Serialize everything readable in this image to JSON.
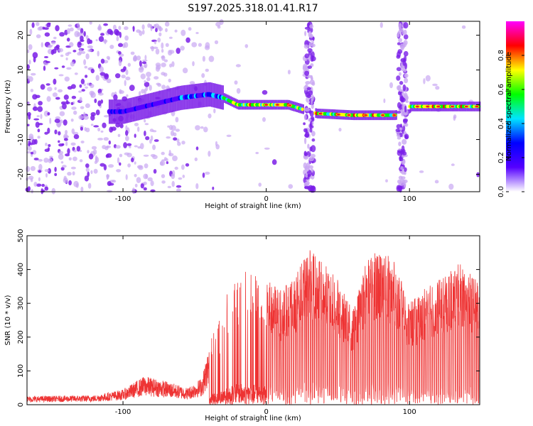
{
  "title": "S197.2025.318.01.41.R17",
  "colors": {
    "spectrogram_sparse": "#c9a8f2",
    "spectrogram_dense": "#7b1fe8",
    "snr_line": "#ee3333"
  },
  "chart_data": [
    {
      "type": "heatmap",
      "name": "spectrogram",
      "xlabel": "Height of straight line (km)",
      "ylabel": "Frequency (Hz)",
      "xlim": [
        -167,
        149
      ],
      "ylim": [
        -25,
        24
      ],
      "x_ticks": [
        -100,
        0,
        100
      ],
      "x_tick_labels": [
        "-100",
        "0",
        "100"
      ],
      "y_ticks": [
        -20,
        -10,
        0,
        10,
        20
      ],
      "y_tick_labels": [
        "-20",
        "-10",
        "0",
        "10",
        "20"
      ],
      "colorbar": {
        "label": "Normalized spectral amplitude",
        "range": [
          0,
          1
        ],
        "ticks": [
          0.0,
          0.2,
          0.4,
          0.6,
          0.8
        ],
        "tick_labels": [
          "0.0",
          "0.2",
          "0.4",
          "0.6",
          "0.8"
        ],
        "colormap": [
          "#ffffff",
          "#5500ff",
          "#0000ff",
          "#00e5ff",
          "#00ff00",
          "#ffff00",
          "#ff0000",
          "#ff00ff"
        ]
      },
      "ridge": [
        {
          "x": -100,
          "freq": -2
        },
        {
          "x": -80,
          "freq": 0
        },
        {
          "x": -60,
          "freq": 2
        },
        {
          "x": -40,
          "freq": 3
        },
        {
          "x": -30,
          "freq": 2
        },
        {
          "x": -20,
          "freq": 0
        },
        {
          "x": 0,
          "freq": 0
        },
        {
          "x": 15,
          "freq": 0
        },
        {
          "x": 35,
          "freq": -2.5
        },
        {
          "x": 60,
          "freq": -3
        },
        {
          "x": 90,
          "freq": -3
        },
        {
          "x": 100,
          "freq": -0.5
        },
        {
          "x": 140,
          "freq": -0.5
        }
      ],
      "saturated_columns": [
        30,
        95
      ]
    },
    {
      "type": "line",
      "name": "snr",
      "xlabel": "Height of straight line (km)",
      "ylabel": "SNR (10 * v/v)",
      "xlim": [
        -167,
        149
      ],
      "ylim": [
        0,
        500
      ],
      "x_ticks": [
        -100,
        0,
        100
      ],
      "x_tick_labels": [
        "-100",
        "0",
        "100"
      ],
      "y_ticks": [
        0,
        100,
        200,
        300,
        400,
        500
      ],
      "y_tick_labels": [
        "0",
        "100",
        "200",
        "300",
        "400",
        "500"
      ],
      "envelope": [
        {
          "x": -167,
          "y": 25
        },
        {
          "x": -120,
          "y": 28
        },
        {
          "x": -100,
          "y": 45
        },
        {
          "x": -85,
          "y": 85
        },
        {
          "x": -70,
          "y": 70
        },
        {
          "x": -55,
          "y": 50
        },
        {
          "x": -45,
          "y": 80
        },
        {
          "x": -38,
          "y": 210
        },
        {
          "x": -30,
          "y": 300
        },
        {
          "x": -20,
          "y": 420
        },
        {
          "x": 0,
          "y": 380
        },
        {
          "x": 10,
          "y": 340
        },
        {
          "x": 20,
          "y": 380
        },
        {
          "x": 30,
          "y": 460
        },
        {
          "x": 40,
          "y": 420
        },
        {
          "x": 50,
          "y": 370
        },
        {
          "x": 60,
          "y": 280
        },
        {
          "x": 70,
          "y": 430
        },
        {
          "x": 80,
          "y": 470
        },
        {
          "x": 90,
          "y": 420
        },
        {
          "x": 100,
          "y": 300
        },
        {
          "x": 112,
          "y": 350
        },
        {
          "x": 125,
          "y": 380
        },
        {
          "x": 135,
          "y": 420
        },
        {
          "x": 149,
          "y": 360
        }
      ]
    }
  ]
}
